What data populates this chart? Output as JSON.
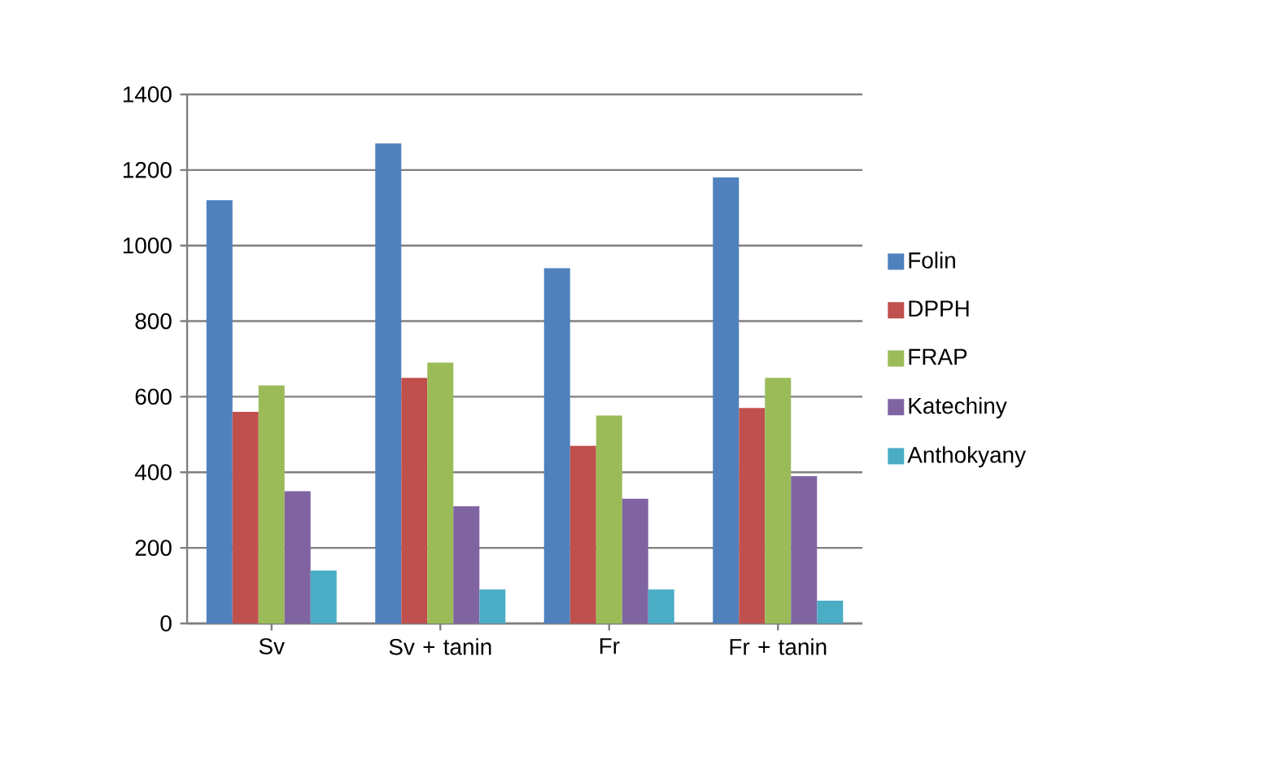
{
  "chart_data": {
    "type": "bar",
    "categories": [
      "Sv",
      "Sv + tanin",
      "Fr",
      "Fr + tanin"
    ],
    "series": [
      {
        "name": "Folin",
        "color": "#4f81bd",
        "values": [
          1120,
          1270,
          940,
          1180
        ]
      },
      {
        "name": "DPPH",
        "color": "#c0504d",
        "values": [
          560,
          650,
          470,
          570
        ]
      },
      {
        "name": "FRAP",
        "color": "#9bbb59",
        "values": [
          630,
          690,
          550,
          650
        ]
      },
      {
        "name": "Katechiny",
        "color": "#8064a2",
        "values": [
          350,
          310,
          330,
          390
        ]
      },
      {
        "name": "Anthokyany",
        "color": "#4bacc6",
        "values": [
          140,
          90,
          90,
          60
        ]
      }
    ],
    "ylim": [
      0,
      1400
    ],
    "yticks": [
      0,
      200,
      400,
      600,
      800,
      1000,
      1200,
      1400
    ],
    "grid": "y",
    "legend": "right"
  }
}
